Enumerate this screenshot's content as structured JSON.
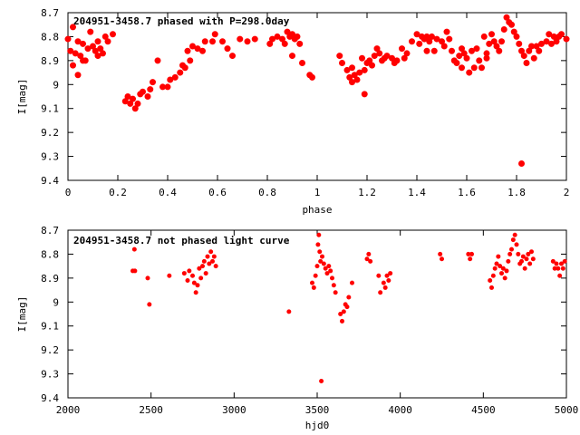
{
  "chart_data": [
    {
      "type": "scatter",
      "title": "204951-3458.7 phased with P=298.0day",
      "xlabel": "phase",
      "ylabel": "I[mag]",
      "xlim": [
        0,
        2
      ],
      "ylim": [
        9.4,
        8.7
      ],
      "y_inverted": true,
      "x_ticks": [
        "0",
        "0.2",
        "0.4",
        "0.6",
        "0.8",
        "1",
        "1.2",
        "1.4",
        "1.6",
        "1.8",
        "2"
      ],
      "y_ticks": [
        "8.7",
        "8.8",
        "8.9",
        "9",
        "9.1",
        "9.2",
        "9.3",
        "9.4"
      ],
      "grid": false,
      "marker_color": "#ff0000",
      "series": [
        {
          "points": [
            [
              0.0,
              8.81
            ],
            [
              0.01,
              8.86
            ],
            [
              0.02,
              8.92
            ],
            [
              0.03,
              8.87
            ],
            [
              0.04,
              8.82
            ],
            [
              0.05,
              8.88
            ],
            [
              0.06,
              8.83
            ],
            [
              0.07,
              8.9
            ],
            [
              0.08,
              8.85
            ],
            [
              0.09,
              8.78
            ],
            [
              0.1,
              8.84
            ],
            [
              0.11,
              8.86
            ],
            [
              0.12,
              8.88
            ],
            [
              0.13,
              8.85
            ],
            [
              0.14,
              8.87
            ],
            [
              0.15,
              8.8
            ],
            [
              0.16,
              8.82
            ],
            [
              0.18,
              8.79
            ],
            [
              0.04,
              8.96
            ],
            [
              0.02,
              8.76
            ],
            [
              0.23,
              9.07
            ],
            [
              0.24,
              9.05
            ],
            [
              0.25,
              9.08
            ],
            [
              0.26,
              9.06
            ],
            [
              0.27,
              9.1
            ],
            [
              0.28,
              9.08
            ],
            [
              0.29,
              9.04
            ],
            [
              0.3,
              9.03
            ],
            [
              0.32,
              9.05
            ],
            [
              0.33,
              9.02
            ],
            [
              0.34,
              8.99
            ],
            [
              0.36,
              8.9
            ],
            [
              0.38,
              9.01
            ],
            [
              0.4,
              9.01
            ],
            [
              0.41,
              8.98
            ],
            [
              0.43,
              8.97
            ],
            [
              0.45,
              8.95
            ],
            [
              0.46,
              8.92
            ],
            [
              0.47,
              8.93
            ],
            [
              0.49,
              8.9
            ],
            [
              0.48,
              8.86
            ],
            [
              0.5,
              8.84
            ],
            [
              0.52,
              8.85
            ],
            [
              0.54,
              8.86
            ],
            [
              0.55,
              8.82
            ],
            [
              0.58,
              8.82
            ],
            [
              0.59,
              8.79
            ],
            [
              0.62,
              8.82
            ],
            [
              0.64,
              8.85
            ],
            [
              0.66,
              8.88
            ],
            [
              0.69,
              8.81
            ],
            [
              0.72,
              8.82
            ],
            [
              0.75,
              8.81
            ],
            [
              0.81,
              8.83
            ],
            [
              0.82,
              8.81
            ],
            [
              0.84,
              8.8
            ],
            [
              0.86,
              8.81
            ],
            [
              0.87,
              8.83
            ],
            [
              0.88,
              8.78
            ],
            [
              0.89,
              8.8
            ],
            [
              0.9,
              8.79
            ],
            [
              0.91,
              8.81
            ],
            [
              0.92,
              8.8
            ],
            [
              0.93,
              8.83
            ],
            [
              0.94,
              8.91
            ],
            [
              0.97,
              8.96
            ],
            [
              0.98,
              8.97
            ],
            [
              1.09,
              8.88
            ],
            [
              1.1,
              8.91
            ],
            [
              1.12,
              8.94
            ],
            [
              1.13,
              8.97
            ],
            [
              1.14,
              8.99
            ],
            [
              1.15,
              8.96
            ],
            [
              1.16,
              8.98
            ],
            [
              1.17,
              8.95
            ],
            [
              1.18,
              8.89
            ],
            [
              1.19,
              8.94
            ],
            [
              1.2,
              8.91
            ],
            [
              1.21,
              8.9
            ],
            [
              1.22,
              8.92
            ],
            [
              1.23,
              8.88
            ],
            [
              1.24,
              8.85
            ],
            [
              1.25,
              8.87
            ],
            [
              1.26,
              8.9
            ],
            [
              1.27,
              8.89
            ],
            [
              1.28,
              8.88
            ],
            [
              1.3,
              8.89
            ],
            [
              1.31,
              8.91
            ],
            [
              1.32,
              8.9
            ],
            [
              1.34,
              8.85
            ],
            [
              1.36,
              8.87
            ],
            [
              1.38,
              8.82
            ],
            [
              1.4,
              8.79
            ],
            [
              1.41,
              8.83
            ],
            [
              1.42,
              8.8
            ],
            [
              1.43,
              8.81
            ],
            [
              1.44,
              8.86
            ],
            [
              1.45,
              8.82
            ],
            [
              1.46,
              8.8
            ],
            [
              1.48,
              8.81
            ],
            [
              1.5,
              8.82
            ],
            [
              1.51,
              8.84
            ],
            [
              1.52,
              8.78
            ],
            [
              1.53,
              8.81
            ],
            [
              1.54,
              8.86
            ],
            [
              1.55,
              8.9
            ],
            [
              1.56,
              8.91
            ],
            [
              1.57,
              8.88
            ],
            [
              1.58,
              8.93
            ],
            [
              1.59,
              8.87
            ],
            [
              1.6,
              8.89
            ],
            [
              1.61,
              8.95
            ],
            [
              1.62,
              8.86
            ],
            [
              1.63,
              8.93
            ],
            [
              1.64,
              8.85
            ],
            [
              1.65,
              8.9
            ],
            [
              1.66,
              8.93
            ],
            [
              1.67,
              8.8
            ],
            [
              1.68,
              8.87
            ],
            [
              1.69,
              8.83
            ],
            [
              1.7,
              8.79
            ],
            [
              1.71,
              8.82
            ],
            [
              1.72,
              8.84
            ],
            [
              1.73,
              8.86
            ],
            [
              1.74,
              8.82
            ],
            [
              1.75,
              8.77
            ],
            [
              1.76,
              8.72
            ],
            [
              1.77,
              8.74
            ],
            [
              1.78,
              8.75
            ],
            [
              1.79,
              8.78
            ],
            [
              1.8,
              8.8
            ],
            [
              1.81,
              8.83
            ],
            [
              1.82,
              8.86
            ],
            [
              1.83,
              8.88
            ],
            [
              1.84,
              8.91
            ],
            [
              1.85,
              8.86
            ],
            [
              1.86,
              8.84
            ],
            [
              1.87,
              8.89
            ],
            [
              1.88,
              8.84
            ],
            [
              1.89,
              8.86
            ],
            [
              1.9,
              8.83
            ],
            [
              1.92,
              8.82
            ],
            [
              1.93,
              8.79
            ],
            [
              1.94,
              8.83
            ],
            [
              1.95,
              8.8
            ],
            [
              1.96,
              8.82
            ],
            [
              1.97,
              8.8
            ],
            [
              1.98,
              8.79
            ],
            [
              2.0,
              8.81
            ],
            [
              1.82,
              9.33
            ],
            [
              1.19,
              9.04
            ],
            [
              0.9,
              8.88
            ],
            [
              0.06,
              8.9
            ],
            [
              0.12,
              8.82
            ],
            [
              1.14,
              8.93
            ],
            [
              1.68,
              8.89
            ],
            [
              1.58,
              8.85
            ],
            [
              1.47,
              8.86
            ],
            [
              1.35,
              8.89
            ],
            [
              1.44,
              8.8
            ]
          ]
        }
      ]
    },
    {
      "type": "scatter",
      "title": "204951-3458.7 not phased light curve",
      "xlabel": "hjd0",
      "ylabel": "I[mag]",
      "xlim": [
        2000,
        5000
      ],
      "ylim": [
        9.4,
        8.7
      ],
      "y_inverted": true,
      "x_ticks": [
        "2000",
        "2500",
        "3000",
        "3500",
        "4000",
        "4500",
        "5000"
      ],
      "y_ticks": [
        "8.7",
        "8.8",
        "8.9",
        "9",
        "9.1",
        "9.2",
        "9.3",
        "9.4"
      ],
      "grid": false,
      "marker_color": "#ff0000",
      "series": [
        {
          "points": [
            [
              2390,
              8.87
            ],
            [
              2400,
              8.78
            ],
            [
              2403,
              8.87
            ],
            [
              2480,
              8.9
            ],
            [
              2490,
              9.01
            ],
            [
              2610,
              8.89
            ],
            [
              2700,
              8.88
            ],
            [
              2720,
              8.91
            ],
            [
              2730,
              8.87
            ],
            [
              2750,
              8.89
            ],
            [
              2760,
              8.92
            ],
            [
              2770,
              8.96
            ],
            [
              2780,
              8.93
            ],
            [
              2790,
              8.86
            ],
            [
              2800,
              8.9
            ],
            [
              2810,
              8.85
            ],
            [
              2820,
              8.83
            ],
            [
              2830,
              8.88
            ],
            [
              2840,
              8.81
            ],
            [
              2850,
              8.84
            ],
            [
              2860,
              8.79
            ],
            [
              2870,
              8.83
            ],
            [
              2880,
              8.81
            ],
            [
              2890,
              8.85
            ],
            [
              3330,
              9.04
            ],
            [
              3470,
              8.92
            ],
            [
              3480,
              8.94
            ],
            [
              3490,
              8.89
            ],
            [
              3500,
              8.85
            ],
            [
              3505,
              8.76
            ],
            [
              3510,
              8.72
            ],
            [
              3515,
              8.79
            ],
            [
              3520,
              8.83
            ],
            [
              3525,
              9.33
            ],
            [
              3530,
              8.81
            ],
            [
              3540,
              8.84
            ],
            [
              3550,
              8.86
            ],
            [
              3560,
              8.88
            ],
            [
              3570,
              8.85
            ],
            [
              3580,
              8.87
            ],
            [
              3590,
              8.9
            ],
            [
              3600,
              8.93
            ],
            [
              3610,
              8.96
            ],
            [
              3640,
              9.05
            ],
            [
              3650,
              9.08
            ],
            [
              3660,
              9.04
            ],
            [
              3670,
              9.01
            ],
            [
              3680,
              9.02
            ],
            [
              3690,
              8.98
            ],
            [
              3710,
              8.92
            ],
            [
              3800,
              8.82
            ],
            [
              3810,
              8.8
            ],
            [
              3820,
              8.83
            ],
            [
              3870,
              8.89
            ],
            [
              3880,
              8.96
            ],
            [
              3900,
              8.92
            ],
            [
              3910,
              8.94
            ],
            [
              3920,
              8.89
            ],
            [
              3930,
              8.91
            ],
            [
              3940,
              8.88
            ],
            [
              4240,
              8.8
            ],
            [
              4250,
              8.82
            ],
            [
              4410,
              8.8
            ],
            [
              4420,
              8.82
            ],
            [
              4430,
              8.8
            ],
            [
              4540,
              8.91
            ],
            [
              4550,
              8.94
            ],
            [
              4560,
              8.89
            ],
            [
              4570,
              8.86
            ],
            [
              4580,
              8.84
            ],
            [
              4590,
              8.81
            ],
            [
              4600,
              8.85
            ],
            [
              4610,
              8.88
            ],
            [
              4620,
              8.86
            ],
            [
              4630,
              8.9
            ],
            [
              4640,
              8.87
            ],
            [
              4650,
              8.83
            ],
            [
              4660,
              8.8
            ],
            [
              4670,
              8.78
            ],
            [
              4680,
              8.74
            ],
            [
              4690,
              8.72
            ],
            [
              4700,
              8.76
            ],
            [
              4710,
              8.8
            ],
            [
              4720,
              8.84
            ],
            [
              4730,
              8.83
            ],
            [
              4740,
              8.81
            ],
            [
              4750,
              8.86
            ],
            [
              4760,
              8.82
            ],
            [
              4770,
              8.8
            ],
            [
              4780,
              8.84
            ],
            [
              4790,
              8.79
            ],
            [
              4800,
              8.82
            ],
            [
              4920,
              8.83
            ],
            [
              4930,
              8.86
            ],
            [
              4940,
              8.84
            ],
            [
              4950,
              8.86
            ],
            [
              4960,
              8.89
            ],
            [
              4970,
              8.84
            ],
            [
              4980,
              8.86
            ],
            [
              4990,
              8.83
            ]
          ]
        }
      ]
    }
  ]
}
